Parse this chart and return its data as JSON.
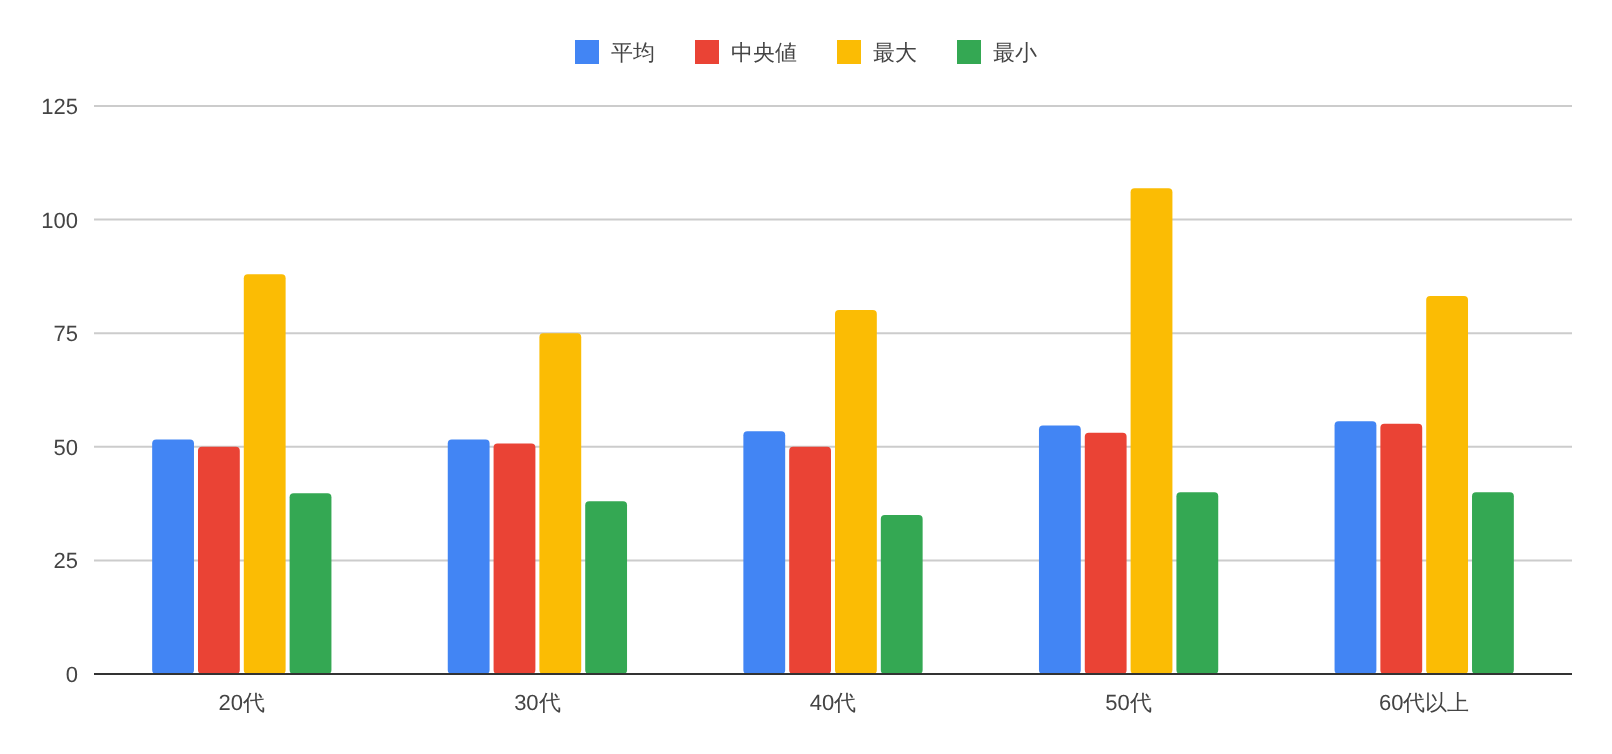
{
  "chart_data": {
    "type": "bar",
    "categories": [
      "20代",
      "30代",
      "40代",
      "50代",
      "60代以上"
    ],
    "series": [
      {
        "name": "平均",
        "color": "#4285f4",
        "values": [
          51.6,
          51.6,
          53.4,
          54.7,
          55.6
        ]
      },
      {
        "name": "中央値",
        "color": "#ea4335",
        "values": [
          50,
          50.7,
          50,
          53.1,
          55.1
        ]
      },
      {
        "name": "最大",
        "color": "#fbbc04",
        "values": [
          88,
          75,
          80.1,
          106.9,
          83.2
        ]
      },
      {
        "name": "最小",
        "color": "#34a853",
        "values": [
          39.8,
          38,
          35,
          40,
          40
        ]
      }
    ],
    "ylim": [
      0,
      125
    ],
    "yticks": [
      0,
      25,
      50,
      75,
      100,
      125
    ],
    "grid": "y",
    "legend": "top"
  }
}
